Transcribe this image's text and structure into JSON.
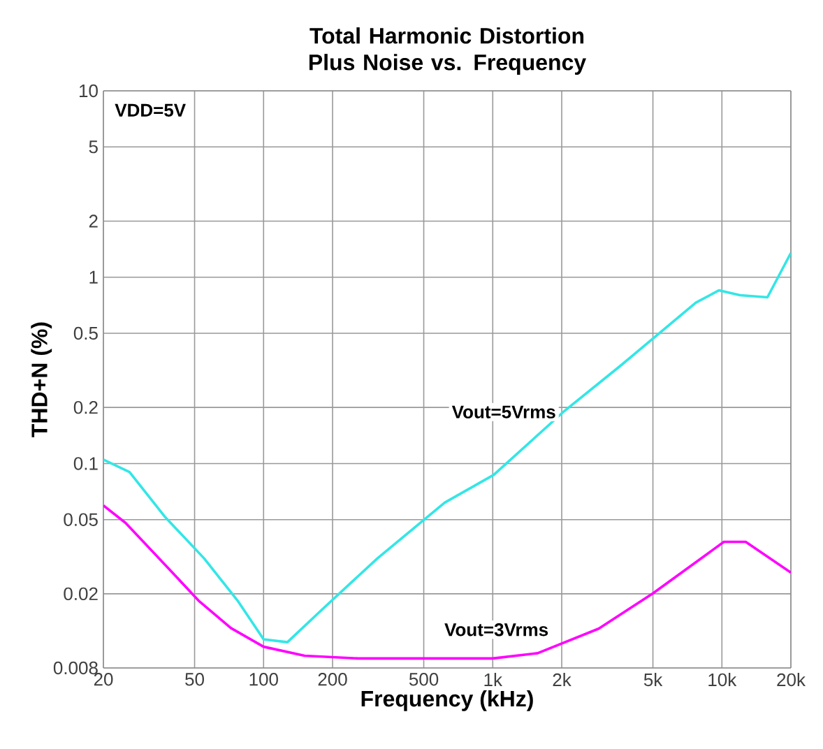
{
  "chart_data": {
    "type": "line",
    "title": "Total Harmonic Distortion Plus Noise vs. Frequency",
    "xlabel": "Frequency (kHz)",
    "ylabel": "THD+N (%)",
    "log": "xy",
    "grid": true,
    "marker": "none",
    "line_style": "solid",
    "xlim": [
      20,
      20000
    ],
    "ylim": [
      0.008,
      10
    ],
    "xticks": [
      20,
      50,
      100,
      200,
      500,
      {
        "value": 1000,
        "label": "1k"
      },
      {
        "value": 2000,
        "label": "2k"
      },
      {
        "value": 5000,
        "label": "5k"
      },
      {
        "value": 10000,
        "label": "10k"
      },
      {
        "value": 20000,
        "label": "20k"
      }
    ],
    "yticks": [
      0.008,
      0.02,
      0.05,
      0.1,
      0.2,
      0.5,
      1,
      2,
      5,
      10
    ],
    "annotations": [
      "VDD=5V"
    ],
    "series": [
      {
        "name": "Vout=5Vrms",
        "color": "#33e6e6",
        "x": [
          20,
          26,
          37,
          55,
          77,
          100,
          127,
          185,
          314,
          617,
          1010,
          2030,
          3600,
          7700,
          9700,
          12000,
          15800,
          20000
        ],
        "values": [
          0.105,
          0.09,
          0.052,
          0.031,
          0.0184,
          0.0114,
          0.011,
          0.017,
          0.031,
          0.0617,
          0.087,
          0.189,
          0.334,
          0.73,
          0.85,
          0.8,
          0.78,
          1.35
        ]
      },
      {
        "name": "Vout=3Vrms",
        "color": "#ff00ff",
        "x": [
          20,
          25,
          40,
          52,
          72,
          100,
          151,
          258,
          1000,
          1570,
          2900,
          5000,
          10200,
          12700,
          20000
        ],
        "values": [
          0.0596,
          0.048,
          0.026,
          0.0184,
          0.0131,
          0.0104,
          0.0093,
          0.009,
          0.009,
          0.0096,
          0.013,
          0.0201,
          0.038,
          0.038,
          0.026
        ]
      }
    ]
  }
}
